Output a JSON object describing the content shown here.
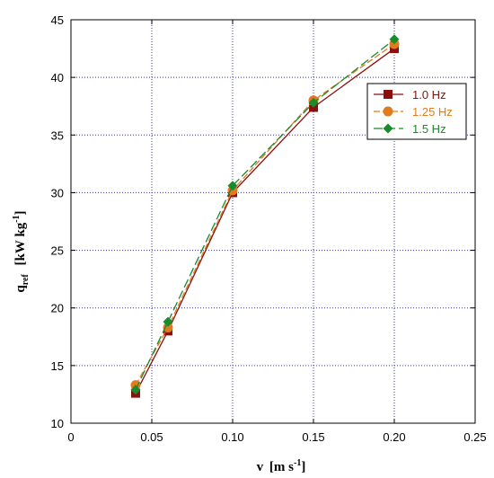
{
  "chart_data": {
    "type": "line",
    "x": [
      0.04,
      0.06,
      0.1,
      0.15,
      0.2
    ],
    "xlim": [
      0,
      0.25
    ],
    "ylim": [
      10,
      45
    ],
    "xticks": [
      "0",
      "0.05",
      "0.10",
      "0.15",
      "0.20",
      "0.25"
    ],
    "yticks": [
      "10",
      "15",
      "20",
      "25",
      "30",
      "35",
      "40",
      "45"
    ],
    "xlabel": {
      "main": "v",
      "unit": "[m s",
      "exp": "-1",
      "close": "]"
    },
    "ylabel": {
      "main": "q",
      "sub": "ref",
      "unit": "[kW kg",
      "exp": "-1",
      "close": "]"
    },
    "grid": true,
    "legend_position": "top-right",
    "series": [
      {
        "name": "1.0 Hz",
        "values": [
          12.6,
          18.0,
          30.0,
          37.4,
          42.5
        ],
        "color": "#8b0f0f",
        "marker": "square",
        "dash": "solid"
      },
      {
        "name": "1.25 Hz",
        "values": [
          13.3,
          18.3,
          30.2,
          38.0,
          42.9
        ],
        "color": "#e07b20",
        "marker": "circle",
        "dash": "dashed"
      },
      {
        "name": "1.5 Hz",
        "values": [
          12.9,
          18.8,
          30.6,
          37.8,
          43.3
        ],
        "color": "#1a8a2c",
        "marker": "diamond",
        "dash": "longdash"
      }
    ]
  }
}
